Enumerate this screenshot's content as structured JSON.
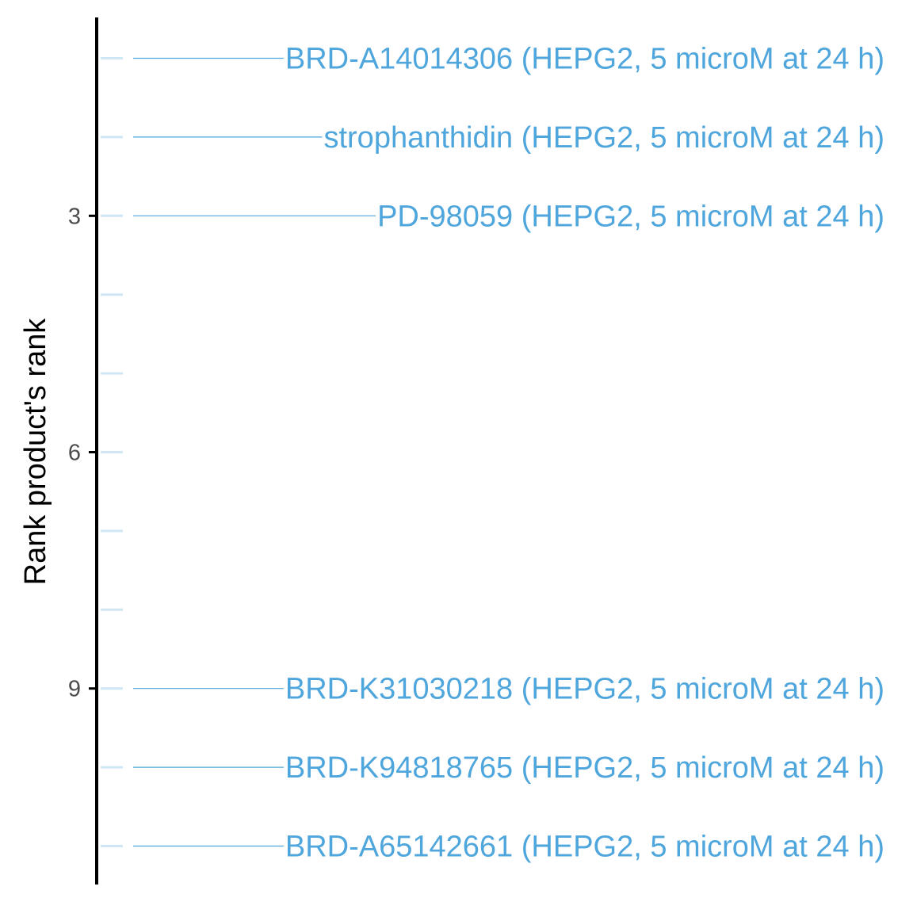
{
  "chart_data": {
    "type": "scatter",
    "title": "",
    "xlabel": "",
    "ylabel": "Rank product's rank",
    "ylim": [
      0.5,
      11.5
    ],
    "y_reversed": true,
    "grid": false,
    "y_ticks": [
      3,
      6,
      9
    ],
    "y_minor_ticks": [
      1,
      2,
      3,
      4,
      5,
      6,
      7,
      8,
      9,
      10,
      11
    ],
    "points": [
      {
        "rank": 1,
        "label": "BRD-A14014306 (HEPG2, 5 microM at 24 h)"
      },
      {
        "rank": 2,
        "label": "strophanthidin (HEPG2, 5 microM at 24 h)"
      },
      {
        "rank": 3,
        "label": "PD-98059 (HEPG2, 5 microM at 24 h)"
      },
      {
        "rank": 9,
        "label": "BRD-K31030218 (HEPG2, 5 microM at 24 h)"
      },
      {
        "rank": 10,
        "label": "BRD-K94818765 (HEPG2, 5 microM at 24 h)"
      },
      {
        "rank": 11,
        "label": "BRD-A65142661 (HEPG2, 5 microM at 24 h)"
      }
    ],
    "colors": {
      "label": "#4ea6dc",
      "leader": "#4ea6dc",
      "minor_tick": "#cfe6f5",
      "axis": "#000000",
      "tick_text": "#4d4d4d"
    }
  }
}
